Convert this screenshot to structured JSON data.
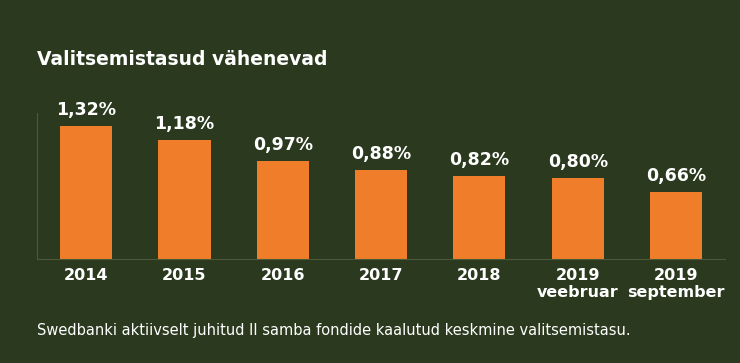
{
  "chart_data": {
    "type": "bar",
    "title": "Valitsemistasud vähenevad",
    "categories": [
      "2014",
      "2015",
      "2016",
      "2017",
      "2018",
      "2019\nveebruar",
      "2019\nseptember"
    ],
    "values": [
      1.32,
      1.18,
      0.97,
      0.88,
      0.82,
      0.8,
      0.66
    ],
    "value_labels": [
      "1,32%",
      "1,18%",
      "0,97%",
      "0,88%",
      "0,82%",
      "0,80%",
      "0,66%"
    ],
    "color": "#f07d2a",
    "data_labels": true,
    "tick_labels": "x",
    "grid": false,
    "ylim": [
      0,
      1.45
    ],
    "yticks": [],
    "annotations": [
      "Swedbanki aktiivselt juhitud II samba fondide kaalutud keskmine valitsemistasu."
    ]
  }
}
